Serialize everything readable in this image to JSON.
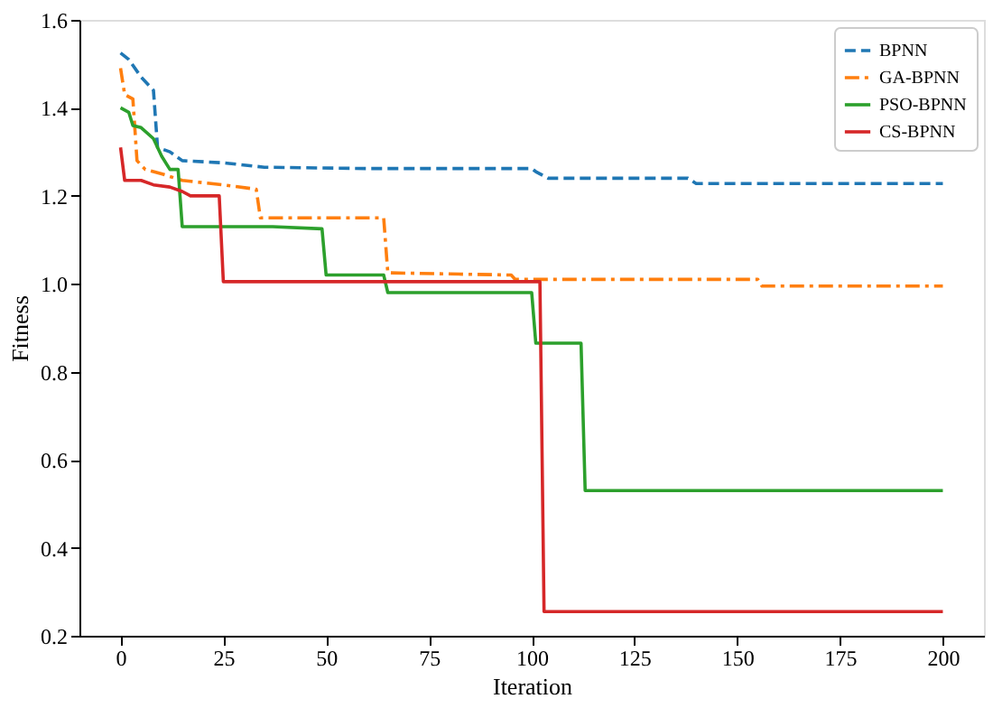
{
  "chart_data": {
    "type": "line",
    "xlabel": "Iteration",
    "ylabel": "Fitness",
    "xlim": [
      -10,
      210
    ],
    "xticks": [
      0,
      25,
      50,
      75,
      100,
      125,
      150,
      175,
      200
    ],
    "ylim": [
      0.2,
      1.6
    ],
    "yticks": [
      0.2,
      0.4,
      0.6,
      0.8,
      {
        "value": 1,
        "label": "1.0"
      },
      1.2,
      1.4,
      1.6
    ],
    "grid": false,
    "legend": "top right",
    "marker": "none",
    "series": [
      {
        "name": "BPNN",
        "color": "#1f77b4",
        "line_style": "dashed",
        "x": [
          0,
          2,
          5,
          8,
          9,
          12,
          15,
          25,
          35,
          60,
          100,
          101,
          104,
          138,
          140,
          200
        ],
        "values": [
          1.525,
          1.51,
          1.47,
          1.44,
          1.31,
          1.3,
          1.28,
          1.275,
          1.265,
          1.262,
          1.262,
          1.255,
          1.24,
          1.24,
          1.228,
          1.228
        ]
      },
      {
        "name": "GA-BPNN",
        "color": "#ff7f0e",
        "line_style": "dashdot",
        "x": [
          0,
          1,
          3,
          4,
          6,
          10,
          15,
          25,
          33,
          34,
          64,
          65,
          95,
          96,
          155,
          156,
          200
        ],
        "values": [
          1.49,
          1.43,
          1.42,
          1.28,
          1.26,
          1.25,
          1.235,
          1.225,
          1.215,
          1.15,
          1.15,
          1.025,
          1.02,
          1.01,
          1.01,
          0.995,
          0.995
        ]
      },
      {
        "name": "PSO-BPNN",
        "color": "#2ca02c",
        "line_style": "solid",
        "x": [
          0,
          2,
          3,
          5,
          8,
          10,
          12,
          14,
          15,
          37,
          49,
          50,
          64,
          65,
          100,
          101,
          112,
          113,
          200
        ],
        "values": [
          1.4,
          1.39,
          1.36,
          1.355,
          1.33,
          1.29,
          1.26,
          1.26,
          1.13,
          1.13,
          1.125,
          1.02,
          1.02,
          0.98,
          0.98,
          0.865,
          0.865,
          0.53,
          0.53
        ]
      },
      {
        "name": "CS-BPNN",
        "color": "#d62728",
        "line_style": "solid",
        "x": [
          0,
          1,
          5,
          8,
          12,
          15,
          17,
          24,
          25,
          102,
          103,
          200
        ],
        "values": [
          1.31,
          1.235,
          1.235,
          1.225,
          1.22,
          1.21,
          1.2,
          1.2,
          1.005,
          1.005,
          0.255,
          0.255
        ]
      }
    ]
  }
}
